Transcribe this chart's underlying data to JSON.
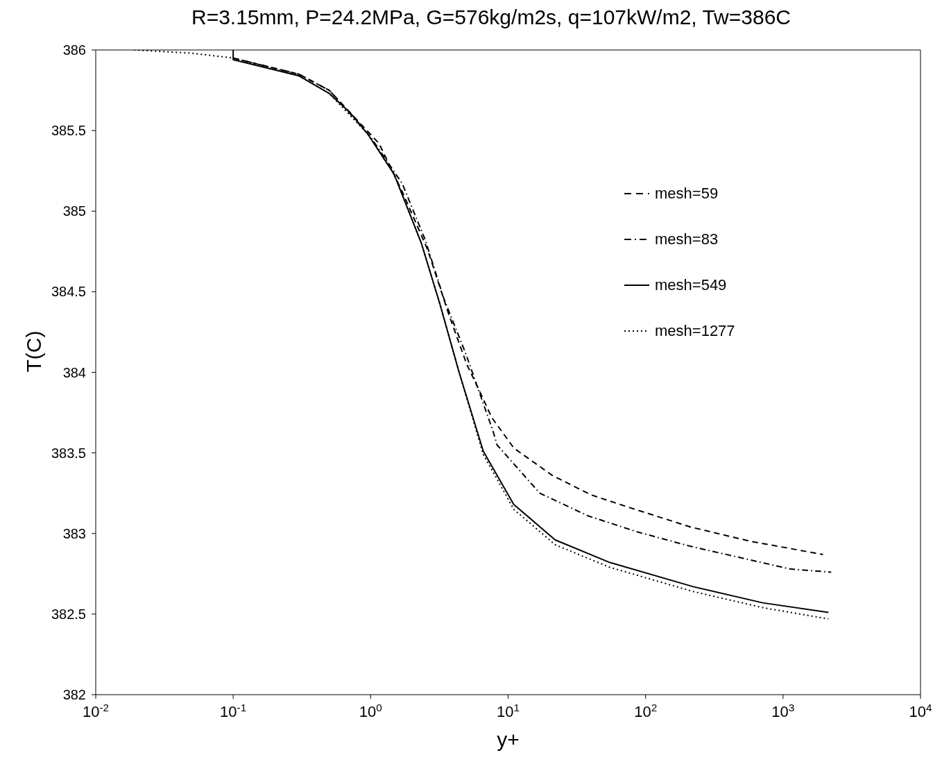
{
  "chart_data": {
    "type": "line",
    "title": "R=3.15mm, P=24.2MPa, G=576kg/m2s, q=107kW/m2, Tw=386C",
    "xlabel": "y+",
    "ylabel": "T(C)",
    "log": "x",
    "grid": false,
    "legend": "top right",
    "marker": "none",
    "xlim": [
      0.01,
      10000
    ],
    "xticks": [
      {
        "value": 0.01,
        "label": "10$^{-2}$"
      },
      {
        "value": 0.1,
        "label": "10$^{-1}$"
      },
      {
        "value": 1,
        "label": "10$^{0}$"
      },
      {
        "value": 10,
        "label": "10$^{1}$"
      },
      {
        "value": 100,
        "label": "10$^{2}$"
      },
      {
        "value": 1000,
        "label": "10$^{3}$"
      },
      {
        "value": 10000,
        "label": "10$^{4}$"
      }
    ],
    "ylim": [
      382,
      386
    ],
    "yticks": [
      382,
      382.5,
      383,
      383.5,
      384,
      384.5,
      385,
      385.5,
      386
    ],
    "series": [
      {
        "name": "mesh=59",
        "color": "#000000",
        "line_style": "dashed",
        "x": [
          0.1,
          0.3,
          0.5,
          1.15,
          1.7,
          2.6,
          3.7,
          5,
          6.3,
          7.6,
          11,
          21,
          40,
          77,
          213,
          590,
          1950
        ],
        "values": [
          385.95,
          385.85,
          385.75,
          385.42,
          385.12,
          384.76,
          384.36,
          384.05,
          383.87,
          383.72,
          383.53,
          383.36,
          383.24,
          383.16,
          383.04,
          382.95,
          382.87
        ]
      },
      {
        "name": "mesh=83",
        "color": "#000000",
        "line_style": "dashdot",
        "x": [
          0.1,
          0.3,
          0.5,
          1,
          1.7,
          2.5,
          3.4,
          4.9,
          7.8,
          8.3,
          17,
          38,
          87,
          213,
          490,
          1120,
          2240
        ],
        "values": [
          385.95,
          385.85,
          385.75,
          385.46,
          385.17,
          384.82,
          384.46,
          384.12,
          383.63,
          383.55,
          383.25,
          383.11,
          383.01,
          382.92,
          382.85,
          382.78,
          382.76
        ]
      },
      {
        "name": "mesh=549",
        "color": "#000000",
        "line_style": "solid",
        "x": [
          0.1,
          0.1,
          0.3,
          0.5,
          0.71,
          0.95,
          1.48,
          2.34,
          3.2,
          4.4,
          6.6,
          11,
          22,
          55,
          222,
          710,
          2140
        ],
        "values": [
          386,
          385.94,
          385.84,
          385.73,
          385.61,
          385.48,
          385.23,
          384.8,
          384.42,
          384.0,
          383.51,
          383.18,
          382.96,
          382.82,
          382.67,
          382.57,
          382.51
        ]
      },
      {
        "name": "mesh=1277",
        "color": "#000000",
        "line_style": "dotted",
        "x": [
          0.019,
          0.05,
          0.1,
          0.3,
          0.5,
          0.95,
          1.48,
          2.34,
          3.2,
          4.4,
          6.6,
          11,
          22,
          55,
          222,
          710,
          2140
        ],
        "values": [
          386,
          385.98,
          385.95,
          385.84,
          385.73,
          385.48,
          385.23,
          384.8,
          384.42,
          384.0,
          383.49,
          383.15,
          382.93,
          382.79,
          382.64,
          382.54,
          382.47
        ]
      }
    ]
  }
}
